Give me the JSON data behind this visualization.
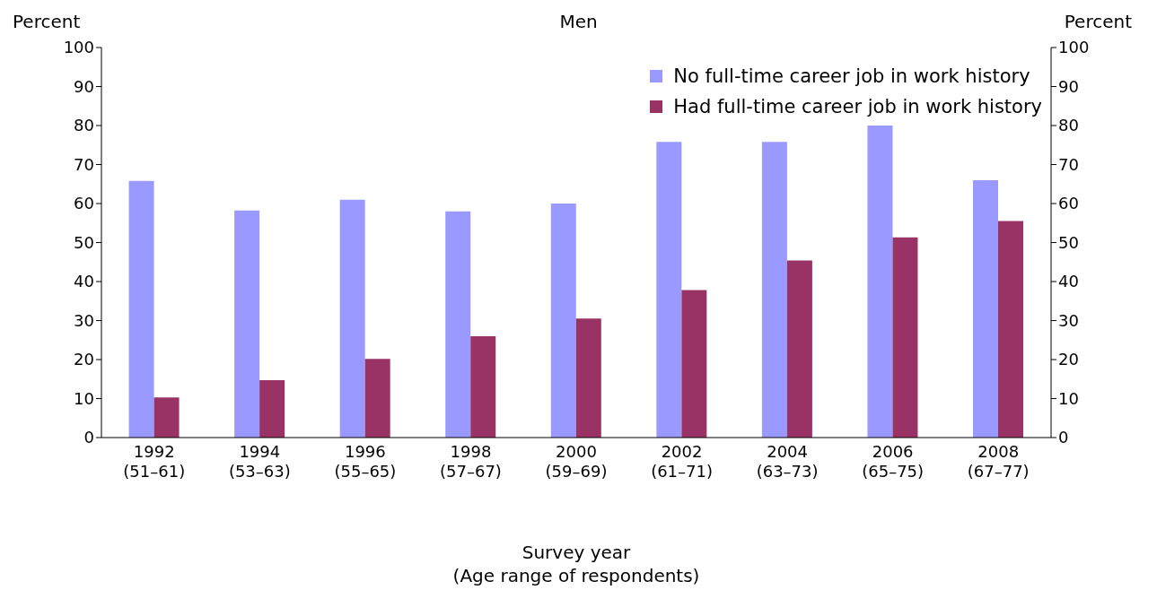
{
  "chart_data": {
    "type": "bar",
    "title": "Men",
    "xlabel": "Survey year\n(Age range of respondents)",
    "ylabel": "Percent",
    "y2label": "Percent",
    "categories": [
      "1992\n(51–61)",
      "1994\n(53–63)",
      "1996\n(55–65)",
      "1998\n(57–67)",
      "2000\n(59–69)",
      "2002\n(61–71)",
      "2004\n(63–73)",
      "2006\n(65–75)",
      "2008\n(67–77)"
    ],
    "series": [
      {
        "name": "No full-time career job in work  history",
        "color": "#9999ff",
        "values": [
          65.8,
          58.2,
          61,
          58,
          60,
          75.8,
          75.8,
          80,
          66
        ]
      },
      {
        "name": "Had full-time career job in work history",
        "color": "#993366",
        "values": [
          10.3,
          14.7,
          20.2,
          26,
          30.5,
          37.8,
          45.4,
          51.3,
          55.5
        ]
      }
    ],
    "ylim": [
      0,
      100
    ],
    "yticks": [
      0,
      10,
      20,
      30,
      40,
      50,
      60,
      70,
      80,
      90,
      100
    ],
    "y2lim": [
      0,
      100
    ],
    "y2ticks": [
      0,
      10,
      20,
      30,
      40,
      50,
      60,
      70,
      80,
      90,
      100
    ],
    "grid": false,
    "legend": "top right"
  }
}
